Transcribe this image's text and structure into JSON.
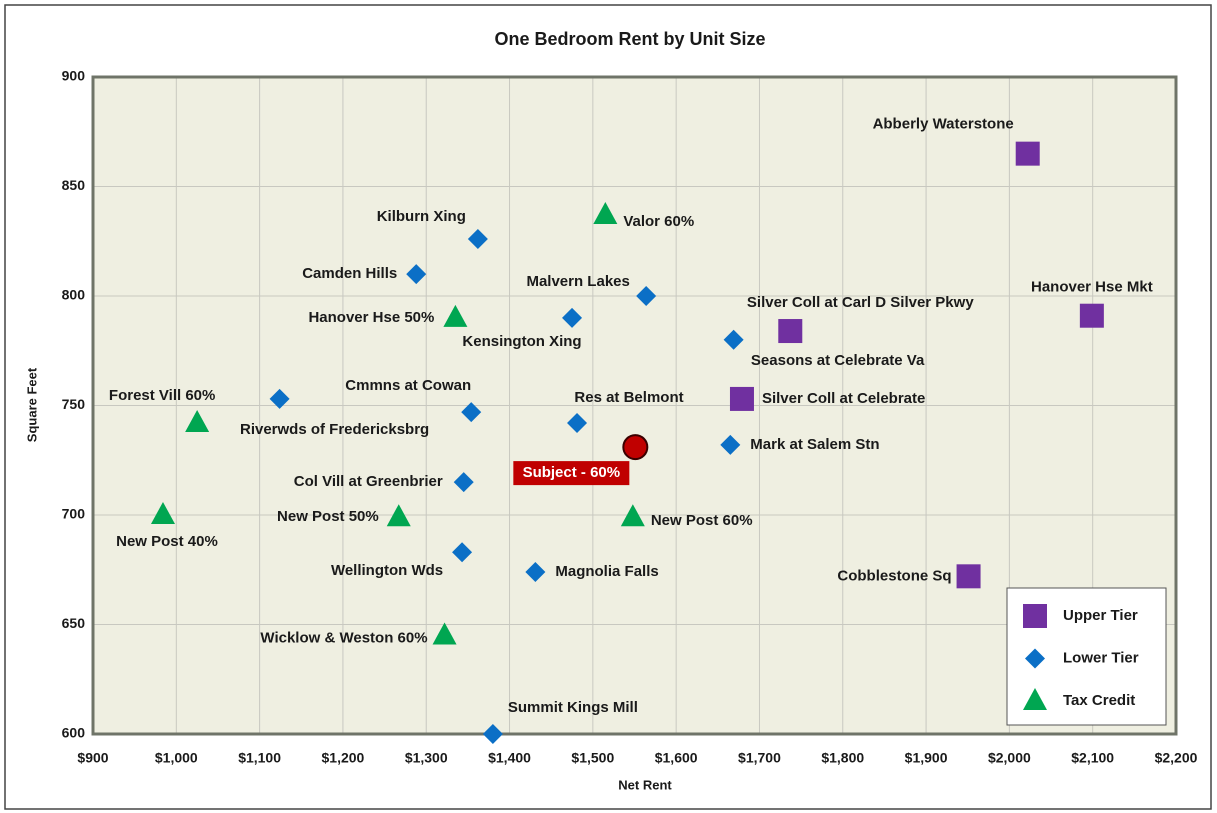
{
  "chart_data": {
    "type": "scatter",
    "title": "One Bedroom Rent by Unit Size",
    "xlabel": "Net Rent",
    "ylabel": "Square Feet",
    "xlim": [
      900,
      2200
    ],
    "xticks": [
      {
        "value": 900,
        "label": "$900"
      },
      {
        "value": 1000,
        "label": "$1,000"
      },
      {
        "value": 1100,
        "label": "$1,100"
      },
      {
        "value": 1200,
        "label": "$1,200"
      },
      {
        "value": 1300,
        "label": "$1,300"
      },
      {
        "value": 1400,
        "label": "$1,400"
      },
      {
        "value": 1500,
        "label": "$1,500"
      },
      {
        "value": 1600,
        "label": "$1,600"
      },
      {
        "value": 1700,
        "label": "$1,700"
      },
      {
        "value": 1800,
        "label": "$1,800"
      },
      {
        "value": 1900,
        "label": "$1,900"
      },
      {
        "value": 2000,
        "label": "$2,000"
      },
      {
        "value": 2100,
        "label": "$2,100"
      },
      {
        "value": 2200,
        "label": "$2,200"
      }
    ],
    "ylim": [
      600,
      900
    ],
    "yticks": [
      600,
      650,
      700,
      750,
      800,
      850,
      900
    ],
    "grid": true,
    "legend": "lower right",
    "series": [
      {
        "name": "Upper Tier",
        "color": "#7030a0",
        "marker": "square",
        "x": [
          2022,
          2099,
          1737,
          1679,
          1951
        ],
        "values": [
          865,
          791,
          784,
          753,
          672
        ],
        "labels": [
          "Abberly Waterstone",
          "Hanover Hse Mkt",
          "Silver Coll at Carl D Silver Pkwy",
          "Silver Coll at Celebrate",
          "Cobblestone Sq"
        ]
      },
      {
        "name": "Lower Tier",
        "color": "#0b6fc6",
        "marker": "diamond",
        "x": [
          1362,
          1288,
          1564,
          1475,
          1669,
          1124,
          1354,
          1481,
          1665,
          1345,
          1343,
          1431,
          1380
        ],
        "values": [
          826,
          810,
          800,
          790,
          780,
          753,
          747,
          742,
          732,
          715,
          683,
          674,
          600
        ],
        "labels": [
          "Kilburn Xing",
          "Camden Hills",
          "Malvern Lakes",
          "Kensington Xing",
          "Seasons at Celebrate Va",
          "Riverwds of Fredericksbrg",
          "Cmmns at Cowan",
          "Res at Belmont",
          "Mark at Salem Stn",
          "Col Vill at Greenbrier",
          "Wellington Wds",
          "Magnolia Falls",
          "Summit Kings Mill"
        ]
      },
      {
        "name": "Tax Credit",
        "color": "#00a651",
        "marker": "triangle",
        "x": [
          1515,
          1335,
          1025,
          1267,
          1548,
          984,
          1322
        ],
        "values": [
          837,
          790,
          742,
          699,
          699,
          700,
          645
        ],
        "labels": [
          "Valor 60%",
          "Hanover Hse 50%",
          "Forest Vill 60%",
          "New Post 50%",
          "New Post 60%",
          "New Post 40%",
          "Wicklow & Weston 60%"
        ]
      }
    ],
    "subject": {
      "label": "Subject - 60%",
      "x": 1551,
      "y": 731,
      "color": "#c00000"
    }
  }
}
